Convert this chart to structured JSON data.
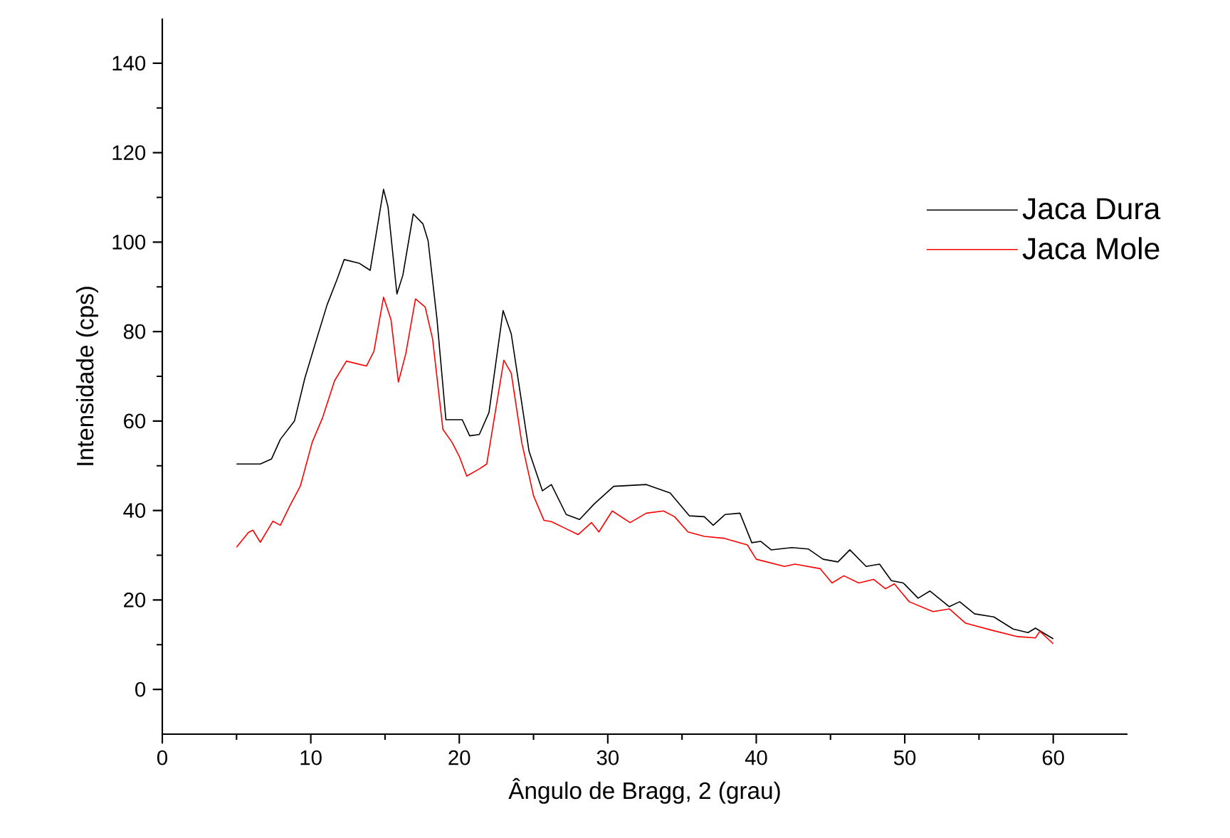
{
  "chart_data": {
    "type": "line",
    "xlabel": "Ângulo de Bragg, 2 (grau)",
    "ylabel": "Intensidade (cps)",
    "xlim": [
      0,
      65
    ],
    "ylim": [
      -10,
      150
    ],
    "xticks": [
      0,
      10,
      20,
      30,
      40,
      50,
      60
    ],
    "yticks": [
      0,
      20,
      40,
      60,
      80,
      100,
      120,
      140
    ],
    "grid": false,
    "legend": "top right",
    "marker": "none",
    "line_style": "solid",
    "series": [
      {
        "name": "Jaca Dura",
        "color": "#000000",
        "x": [
          5.0,
          6.6,
          7.35,
          7.95,
          8.9,
          9.6,
          10.3,
          11.1,
          11.75,
          12.25,
          13.25,
          14.0,
          14.6,
          14.9,
          15.2,
          15.8,
          16.2,
          16.9,
          17.55,
          17.9,
          18.5,
          19.1,
          20.2,
          20.7,
          21.35,
          22.0,
          22.95,
          23.5,
          24.7,
          25.6,
          26.2,
          27.2,
          28.1,
          29.1,
          30.4,
          32.6,
          34.2,
          35.5,
          36.5,
          37.1,
          37.9,
          38.9,
          39.7,
          40.3,
          41.0,
          42.4,
          43.5,
          44.5,
          45.5,
          46.3,
          47.4,
          48.3,
          49.1,
          49.9,
          50.9,
          51.7,
          53.0,
          53.7,
          54.7,
          56.0,
          57.3,
          58.3,
          58.8,
          60.0
        ],
        "values": [
          50.4,
          50.4,
          51.5,
          55.9,
          60,
          69.6,
          77.3,
          86,
          91.5,
          96.1,
          95.3,
          93.7,
          105.8,
          111.8,
          107.9,
          88.4,
          92.6,
          106.3,
          104.1,
          100.3,
          82.7,
          60.3,
          60.3,
          56.7,
          57,
          61.9,
          84.7,
          79.5,
          53.2,
          44.4,
          45.8,
          39.1,
          38,
          41.5,
          45.4,
          45.8,
          43.9,
          38.8,
          38.6,
          36.7,
          39.1,
          39.4,
          32.8,
          33.1,
          31.2,
          31.7,
          31.4,
          29.1,
          28.5,
          31.2,
          27.5,
          28,
          24.3,
          23.8,
          20.4,
          22,
          18.5,
          19.6,
          16.9,
          16.2,
          13.5,
          12.7,
          13.7,
          11.3
        ]
      },
      {
        "name": "Jaca Mole",
        "color": "#ff0000",
        "x": [
          5.0,
          5.8,
          6.1,
          6.6,
          7.45,
          7.95,
          8.6,
          9.3,
          10.1,
          10.8,
          11.6,
          12.4,
          13.75,
          14.25,
          14.9,
          15.4,
          15.9,
          16.4,
          17.05,
          17.7,
          18.2,
          18.9,
          19.5,
          20.0,
          20.5,
          21.35,
          21.85,
          23.0,
          23.5,
          24.2,
          25.0,
          25.7,
          26.2,
          27.2,
          28.0,
          28.9,
          29.4,
          30.3,
          31.5,
          32.6,
          33.75,
          34.5,
          35.4,
          36.5,
          37.8,
          39.4,
          40.0,
          41.9,
          42.6,
          44.3,
          45.1,
          45.9,
          46.9,
          47.9,
          48.7,
          49.3,
          50.3,
          51.9,
          53.0,
          54.1,
          55.9,
          57.6,
          58.8,
          59.1,
          60.0
        ],
        "values": [
          31.8,
          35.1,
          35.6,
          32.9,
          37.6,
          36.7,
          41.1,
          45.5,
          55.3,
          60.8,
          69,
          73.4,
          72.3,
          75.6,
          87.7,
          82.7,
          68.7,
          75.1,
          87.3,
          85.5,
          78.4,
          58.1,
          55.3,
          52.1,
          47.7,
          49.3,
          50.4,
          73.6,
          70.7,
          55.3,
          43.3,
          37.8,
          37.5,
          35.9,
          34.6,
          37.3,
          35.2,
          39.9,
          37.3,
          39.4,
          39.9,
          38.6,
          35.2,
          34.2,
          33.8,
          32.3,
          29.1,
          27.5,
          28,
          27,
          23.8,
          25.4,
          23.8,
          24.6,
          22.5,
          23.6,
          19.6,
          17.4,
          18,
          14.8,
          13.2,
          11.8,
          11.5,
          13,
          10.2
        ]
      }
    ]
  }
}
